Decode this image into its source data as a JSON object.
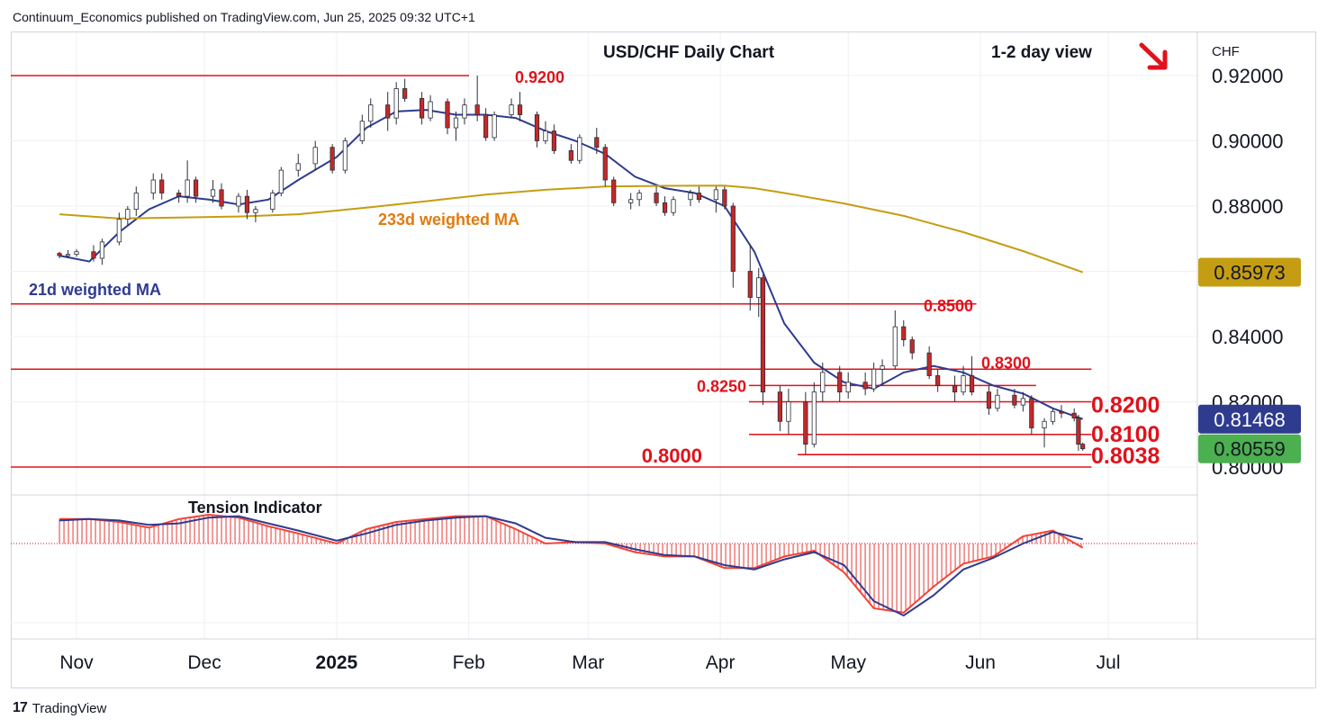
{
  "header": {
    "published": "Continuum_Economics published on TradingView.com, Jun 25, 2025 09:32 UTC+1"
  },
  "footer": {
    "brand": "TradingView",
    "logo_icon": "tradingview-logo-icon"
  },
  "chart_data": {
    "type": "candlestick",
    "title": "USD/CHF Daily Chart",
    "view_label": "1-2 day view",
    "view_arrow_icon": "down-right-arrow-icon",
    "currency": "CHF",
    "y_ticks": [
      "0.92000",
      "0.90000",
      "0.88000",
      "0.84000",
      "0.82000",
      "0.80000"
    ],
    "y_tick_values": [
      0.92,
      0.9,
      0.88,
      0.84,
      0.82,
      0.8
    ],
    "ylim": [
      0.7961,
      0.9304
    ],
    "x_labels": [
      {
        "label": "Nov",
        "bold": false
      },
      {
        "label": "Dec",
        "bold": false
      },
      {
        "label": "2025",
        "bold": true
      },
      {
        "label": "Feb",
        "bold": false
      },
      {
        "label": "Mar",
        "bold": false
      },
      {
        "label": "Apr",
        "bold": false
      },
      {
        "label": "May",
        "bold": false
      },
      {
        "label": "Jun",
        "bold": false
      },
      {
        "label": "Jul",
        "bold": false
      }
    ],
    "price_badges": [
      {
        "value": "0.85973",
        "color": "#c59d12",
        "text_color": "#131722",
        "series": "233d weighted MA"
      },
      {
        "value": "0.81468",
        "color": "#2e3b8f",
        "text_color": "#ffffff",
        "series": "21d weighted MA"
      },
      {
        "value": "0.80559",
        "color": "#4caf50",
        "text_color": "#131722",
        "series": "Last price"
      }
    ],
    "levels": [
      {
        "label": "0.9200",
        "value": 0.92,
        "x_end": "Jan 31",
        "bold": false
      },
      {
        "label": "0.8500",
        "value": 0.85,
        "x_end": "May 30",
        "bold": false
      },
      {
        "label": "0.8300",
        "value": 0.83,
        "x_end": "Jun 26",
        "bold": false
      },
      {
        "label": "0.8250",
        "value": 0.825,
        "x_end": "Jun 13",
        "bold": false
      },
      {
        "label": "0.8200",
        "value": 0.82,
        "x_end": "Jun 26",
        "bold": true
      },
      {
        "label": "0.8100",
        "value": 0.81,
        "x_end": "Jun 26",
        "bold": true
      },
      {
        "label": "0.8038",
        "value": 0.8038,
        "x_end": "Jun 26",
        "bold": true
      },
      {
        "label": "0.8000",
        "value": 0.8,
        "x_end": "Jun 26",
        "bold": true
      }
    ],
    "moving_averages": [
      {
        "name": "21d weighted MA",
        "color": "#2e3b8f",
        "points": [
          [
            "Oct 28",
            0.8648
          ],
          [
            "Nov 4",
            0.863
          ],
          [
            "Nov 11",
            0.872
          ],
          [
            "Nov 18",
            0.879
          ],
          [
            "Nov 25",
            0.883
          ],
          [
            "Dec 2",
            0.882
          ],
          [
            "Dec 9",
            0.8805
          ],
          [
            "Dec 16",
            0.882
          ],
          [
            "Dec 23",
            0.888
          ],
          [
            "Jan 1",
            0.895
          ],
          [
            "Jan 8",
            0.904
          ],
          [
            "Jan 15",
            0.909
          ],
          [
            "Jan 22",
            0.9095
          ],
          [
            "Jan 29",
            0.908
          ],
          [
            "Feb 5",
            0.908
          ],
          [
            "Feb 12",
            0.907
          ],
          [
            "Feb 19",
            0.903
          ],
          [
            "Feb 26",
            0.9
          ],
          [
            "Mar 5",
            0.896
          ],
          [
            "Mar 12",
            0.889
          ],
          [
            "Mar 19",
            0.8855
          ],
          [
            "Mar 26",
            0.884
          ],
          [
            "Apr 2",
            0.88
          ],
          [
            "Apr 9",
            0.866
          ],
          [
            "Apr 16",
            0.844
          ],
          [
            "Apr 23",
            0.832
          ],
          [
            "Apr 30",
            0.826
          ],
          [
            "May 7",
            0.824
          ],
          [
            "May 14",
            0.829
          ],
          [
            "May 21",
            0.831
          ],
          [
            "May 28",
            0.829
          ],
          [
            "Jun 4",
            0.825
          ],
          [
            "Jun 11",
            0.8225
          ],
          [
            "Jun 18",
            0.818
          ],
          [
            "Jun 25",
            0.8147
          ]
        ]
      },
      {
        "name": "233d weighted MA",
        "color": "#c59d12",
        "points": [
          [
            "Oct 28",
            0.8775
          ],
          [
            "Nov 11",
            0.8762
          ],
          [
            "Nov 25",
            0.8765
          ],
          [
            "Dec 9",
            0.8768
          ],
          [
            "Dec 23",
            0.8775
          ],
          [
            "Jan 8",
            0.8795
          ],
          [
            "Jan 22",
            0.8815
          ],
          [
            "Feb 5",
            0.8835
          ],
          [
            "Feb 19",
            0.885
          ],
          [
            "Mar 5",
            0.886
          ],
          [
            "Mar 19",
            0.8862
          ],
          [
            "Apr 2",
            0.8863
          ],
          [
            "Apr 9",
            0.8855
          ],
          [
            "Apr 16",
            0.884
          ],
          [
            "Apr 30",
            0.8808
          ],
          [
            "May 14",
            0.877
          ],
          [
            "May 28",
            0.872
          ],
          [
            "Jun 11",
            0.8662
          ],
          [
            "Jun 25",
            0.8597
          ]
        ]
      }
    ],
    "candles": [
      [
        "Oct 28",
        0.8655,
        0.866,
        0.864,
        0.8648
      ],
      [
        "Oct 30",
        0.8648,
        0.8665,
        0.864,
        0.8652
      ],
      [
        "Nov 1",
        0.8652,
        0.8668,
        0.8645,
        0.866
      ],
      [
        "Nov 5",
        0.866,
        0.868,
        0.863,
        0.864
      ],
      [
        "Nov 7",
        0.864,
        0.87,
        0.862,
        0.869
      ],
      [
        "Nov 11",
        0.869,
        0.878,
        0.868,
        0.876
      ],
      [
        "Nov 13",
        0.876,
        0.88,
        0.874,
        0.879
      ],
      [
        "Nov 15",
        0.879,
        0.886,
        0.877,
        0.884
      ],
      [
        "Nov 19",
        0.884,
        0.89,
        0.882,
        0.888
      ],
      [
        "Nov 21",
        0.888,
        0.89,
        0.882,
        0.884
      ],
      [
        "Nov 25",
        0.884,
        0.885,
        0.881,
        0.883
      ],
      [
        "Nov 27",
        0.883,
        0.894,
        0.881,
        0.888
      ],
      [
        "Nov 29",
        0.888,
        0.889,
        0.881,
        0.883
      ],
      [
        "Dec 3",
        0.883,
        0.888,
        0.881,
        0.885
      ],
      [
        "Dec 5",
        0.885,
        0.887,
        0.879,
        0.88
      ],
      [
        "Dec 9",
        0.88,
        0.884,
        0.878,
        0.883
      ],
      [
        "Dec 11",
        0.883,
        0.885,
        0.876,
        0.878
      ],
      [
        "Dec 13",
        0.878,
        0.88,
        0.875,
        0.879
      ],
      [
        "Dec 17",
        0.879,
        0.885,
        0.878,
        0.884
      ],
      [
        "Dec 19",
        0.884,
        0.892,
        0.883,
        0.891
      ],
      [
        "Dec 23",
        0.891,
        0.896,
        0.889,
        0.893
      ],
      [
        "Dec 27",
        0.893,
        0.9,
        0.891,
        0.898
      ],
      [
        "Dec 31",
        0.898,
        0.899,
        0.89,
        0.891
      ],
      [
        "Jan 3",
        0.891,
        0.901,
        0.89,
        0.9
      ],
      [
        "Jan 7",
        0.9,
        0.908,
        0.899,
        0.906
      ],
      [
        "Jan 9",
        0.906,
        0.913,
        0.904,
        0.911
      ],
      [
        "Jan 13",
        0.911,
        0.915,
        0.903,
        0.907
      ],
      [
        "Jan 15",
        0.907,
        0.918,
        0.905,
        0.916
      ],
      [
        "Jan 17",
        0.916,
        0.919,
        0.912,
        0.913
      ],
      [
        "Jan 21",
        0.913,
        0.915,
        0.905,
        0.907
      ],
      [
        "Jan 23",
        0.907,
        0.914,
        0.906,
        0.912
      ],
      [
        "Jan 27",
        0.912,
        0.913,
        0.902,
        0.904
      ],
      [
        "Jan 29",
        0.904,
        0.909,
        0.9,
        0.907
      ],
      [
        "Jan 31",
        0.907,
        0.913,
        0.905,
        0.911
      ],
      [
        "Feb 3",
        0.911,
        0.92,
        0.906,
        0.908
      ],
      [
        "Feb 5",
        0.908,
        0.91,
        0.9,
        0.901
      ],
      [
        "Feb 7",
        0.901,
        0.909,
        0.9,
        0.908
      ],
      [
        "Feb 11",
        0.908,
        0.913,
        0.907,
        0.911
      ],
      [
        "Feb 13",
        0.911,
        0.915,
        0.906,
        0.908
      ],
      [
        "Feb 17",
        0.908,
        0.909,
        0.898,
        0.9
      ],
      [
        "Feb 19",
        0.9,
        0.906,
        0.899,
        0.903
      ],
      [
        "Feb 21",
        0.903,
        0.905,
        0.896,
        0.897
      ],
      [
        "Feb 25",
        0.897,
        0.899,
        0.893,
        0.894
      ],
      [
        "Feb 27",
        0.894,
        0.902,
        0.893,
        0.901
      ],
      [
        "Mar 3",
        0.901,
        0.904,
        0.896,
        0.898
      ],
      [
        "Mar 5",
        0.898,
        0.899,
        0.886,
        0.888
      ],
      [
        "Mar 7",
        0.888,
        0.889,
        0.88,
        0.881
      ],
      [
        "Mar 11",
        0.881,
        0.884,
        0.879,
        0.882
      ],
      [
        "Mar 13",
        0.882,
        0.885,
        0.88,
        0.884
      ],
      [
        "Mar 17",
        0.884,
        0.886,
        0.88,
        0.881
      ],
      [
        "Mar 19",
        0.881,
        0.883,
        0.877,
        0.878
      ],
      [
        "Mar 21",
        0.878,
        0.883,
        0.877,
        0.882
      ],
      [
        "Mar 25",
        0.882,
        0.885,
        0.88,
        0.884
      ],
      [
        "Mar 27",
        0.884,
        0.886,
        0.881,
        0.882
      ],
      [
        "Mar 31",
        0.882,
        0.886,
        0.878,
        0.885
      ],
      [
        "Apr 2",
        0.885,
        0.886,
        0.879,
        0.88
      ],
      [
        "Apr 4",
        0.88,
        0.881,
        0.855,
        0.86
      ],
      [
        "Apr 8",
        0.86,
        0.868,
        0.848,
        0.852
      ],
      [
        "Apr 10",
        0.852,
        0.861,
        0.846,
        0.858
      ],
      [
        "Apr 11",
        0.858,
        0.859,
        0.819,
        0.823
      ],
      [
        "Apr 15",
        0.823,
        0.825,
        0.811,
        0.814
      ],
      [
        "Apr 17",
        0.814,
        0.824,
        0.81,
        0.82
      ],
      [
        "Apr 21",
        0.82,
        0.823,
        0.804,
        0.807
      ],
      [
        "Apr 23",
        0.807,
        0.826,
        0.806,
        0.823
      ],
      [
        "Apr 25",
        0.823,
        0.832,
        0.82,
        0.829
      ],
      [
        "Apr 29",
        0.829,
        0.831,
        0.82,
        0.823
      ],
      [
        "May 1",
        0.823,
        0.829,
        0.821,
        0.826
      ],
      [
        "May 5",
        0.826,
        0.829,
        0.822,
        0.824
      ],
      [
        "May 7",
        0.824,
        0.832,
        0.823,
        0.83
      ],
      [
        "May 9",
        0.83,
        0.833,
        0.825,
        0.831
      ],
      [
        "May 12",
        0.831,
        0.848,
        0.83,
        0.843
      ],
      [
        "May 14",
        0.843,
        0.845,
        0.837,
        0.839
      ],
      [
        "May 16",
        0.839,
        0.84,
        0.833,
        0.835
      ],
      [
        "May 20",
        0.835,
        0.837,
        0.827,
        0.828
      ],
      [
        "May 22",
        0.828,
        0.83,
        0.823,
        0.825
      ],
      [
        "May 26",
        0.825,
        0.828,
        0.82,
        0.823
      ],
      [
        "May 28",
        0.823,
        0.831,
        0.822,
        0.828
      ],
      [
        "May 30",
        0.828,
        0.834,
        0.822,
        0.823
      ],
      [
        "Jun 3",
        0.823,
        0.825,
        0.816,
        0.818
      ],
      [
        "Jun 5",
        0.818,
        0.824,
        0.817,
        0.822
      ],
      [
        "Jun 9",
        0.822,
        0.824,
        0.818,
        0.819
      ],
      [
        "Jun 11",
        0.819,
        0.823,
        0.817,
        0.821
      ],
      [
        "Jun 13",
        0.821,
        0.822,
        0.81,
        0.812
      ],
      [
        "Jun 16",
        0.812,
        0.815,
        0.806,
        0.814
      ],
      [
        "Jun 18",
        0.814,
        0.818,
        0.813,
        0.817
      ],
      [
        "Jun 20",
        0.817,
        0.819,
        0.815,
        0.8165
      ],
      [
        "Jun 23",
        0.8165,
        0.818,
        0.814,
        0.815
      ],
      [
        "Jun 24",
        0.815,
        0.816,
        0.805,
        0.807
      ],
      [
        "Jun 25",
        0.807,
        0.8075,
        0.805,
        0.8056
      ]
    ],
    "indicator": {
      "name": "Tension Indicator",
      "zero_line": 0,
      "ylim": [
        -55,
        21
      ],
      "fast_color": "#f44336",
      "slow_color": "#2e3b8f",
      "points": [
        [
          "Oct 28",
          17,
          16
        ],
        [
          "Nov 4",
          17,
          17
        ],
        [
          "Nov 11",
          15,
          16
        ],
        [
          "Nov 18",
          11,
          13
        ],
        [
          "Nov 25",
          17,
          14
        ],
        [
          "Dec 2",
          20,
          18
        ],
        [
          "Dec 9",
          18,
          19
        ],
        [
          "Dec 16",
          12,
          14
        ],
        [
          "Dec 23",
          7,
          9
        ],
        [
          "Jan 1",
          0,
          2
        ],
        [
          "Jan 8",
          10,
          7
        ],
        [
          "Jan 15",
          15,
          13
        ],
        [
          "Jan 22",
          17,
          16
        ],
        [
          "Jan 29",
          19,
          18
        ],
        [
          "Feb 5",
          19,
          19
        ],
        [
          "Feb 12",
          10,
          14
        ],
        [
          "Feb 19",
          0,
          4
        ],
        [
          "Feb 26",
          1,
          1
        ],
        [
          "Mar 5",
          0,
          1
        ],
        [
          "Mar 12",
          -6,
          -4
        ],
        [
          "Mar 19",
          -9,
          -8
        ],
        [
          "Mar 26",
          -9,
          -9
        ],
        [
          "Apr 2",
          -17,
          -15
        ],
        [
          "Apr 9",
          -17,
          -18
        ],
        [
          "Apr 16",
          -9,
          -11
        ],
        [
          "Apr 23",
          -5,
          -6
        ],
        [
          "Apr 30",
          -20,
          -15
        ],
        [
          "May 7",
          -45,
          -40
        ],
        [
          "May 14",
          -48,
          -50
        ],
        [
          "May 21",
          -30,
          -36
        ],
        [
          "May 28",
          -14,
          -18
        ],
        [
          "Jun 4",
          -9,
          -10
        ],
        [
          "Jun 11",
          5,
          0
        ],
        [
          "Jun 18",
          9,
          8
        ],
        [
          "Jun 25",
          -3,
          3
        ]
      ]
    }
  }
}
